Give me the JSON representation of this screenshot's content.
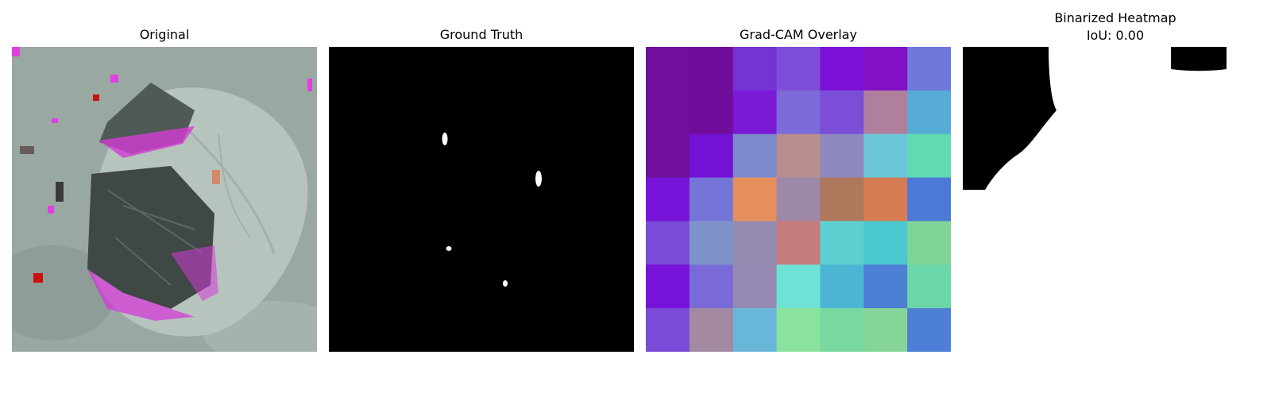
{
  "panels": [
    {
      "title": "Original"
    },
    {
      "title": "Ground Truth"
    },
    {
      "title": "Grad-CAM Overlay"
    },
    {
      "title": "Binarized Heatmap",
      "subtitle": "IoU: 0.00"
    }
  ],
  "gradcam_grid": {
    "rows": 7,
    "cols": 7,
    "colors": [
      [
        "#6f0f9b",
        "#710d9b",
        "#7533d2",
        "#7c4ed7",
        "#7b11d6",
        "#8210c7",
        "#6f79d9"
      ],
      [
        "#6f0f9b",
        "#710d9b",
        "#7a19d8",
        "#7b6ad8",
        "#7c4ed7",
        "#b07f9d",
        "#56acd5"
      ],
      [
        "#6f0f9b",
        "#7412d6",
        "#7a8acb",
        "#b98c90",
        "#8e88c0",
        "#6bc6d8",
        "#60dbb0"
      ],
      [
        "#7712d9",
        "#7575d8",
        "#e58f5c",
        "#9d88a8",
        "#ae785c",
        "#d57c55",
        "#4c79d5"
      ],
      [
        "#7a4bd6",
        "#7f92ca",
        "#958ab0",
        "#c67d7d",
        "#5dd1d2",
        "#4cc8d1",
        "#81d497"
      ],
      [
        "#7712d9",
        "#7a6ad8",
        "#968ab2",
        "#6ee2d6",
        "#4db5d3",
        "#4c7fd5",
        "#6bd6a9"
      ],
      [
        "#7a4bd6",
        "#a38aa2",
        "#68b7d9",
        "#8ae39d",
        "#78d89e",
        "#84d597",
        "#4c7fd5"
      ]
    ]
  }
}
